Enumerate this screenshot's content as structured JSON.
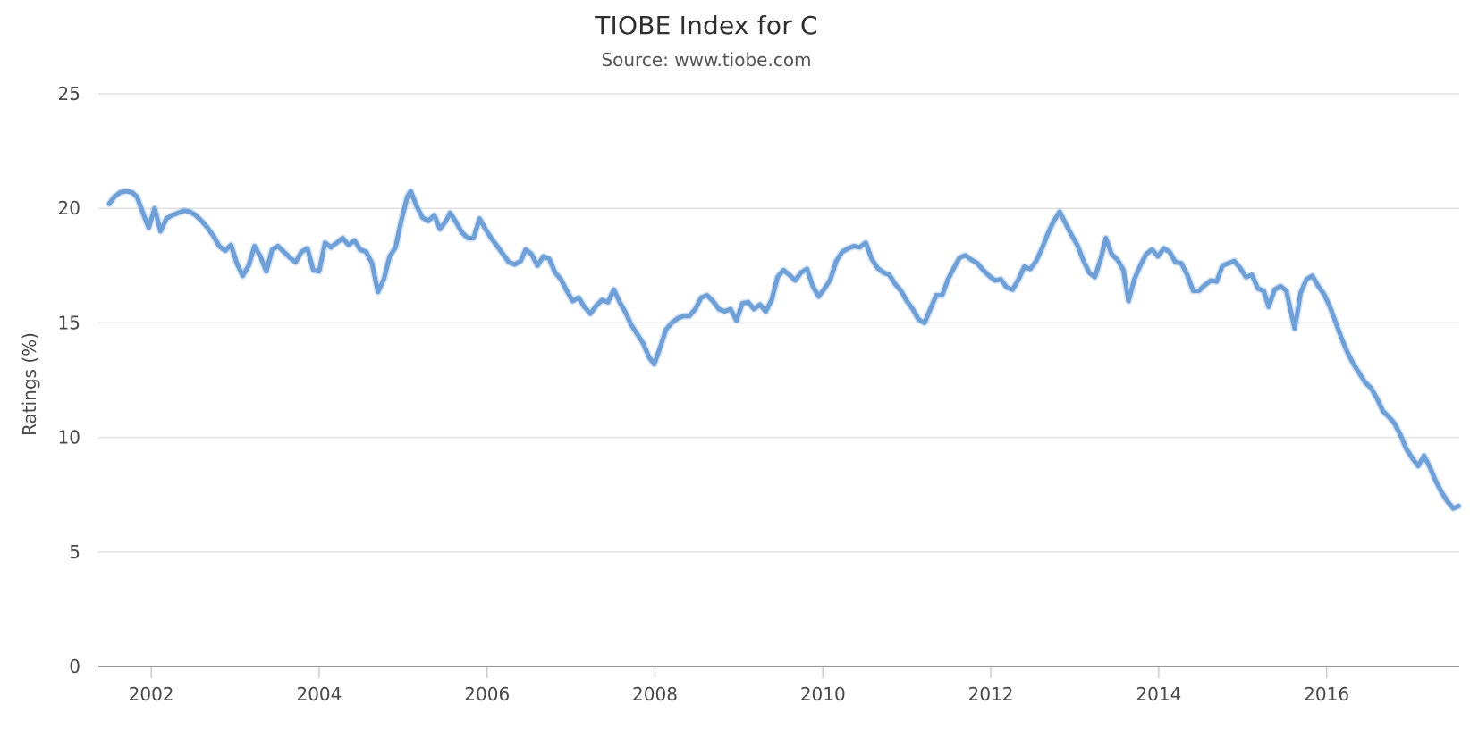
{
  "page": {
    "background": "#ffffff"
  },
  "chart_data": {
    "type": "line",
    "title": "TIOBE Index for C",
    "subtitle": "Source: www.tiobe.com",
    "xlabel": "",
    "ylabel": "Ratings (%)",
    "xlim": [
      2001.37,
      2017.58
    ],
    "ylim": [
      0,
      25
    ],
    "yticks": [
      0,
      5,
      10,
      15,
      20,
      25
    ],
    "xticks": [
      2002,
      2004,
      2006,
      2008,
      2010,
      2012,
      2014,
      2016
    ],
    "grid": "horizontal-only",
    "legend_position": "none",
    "colors": {
      "line": "#6e9fd7",
      "line_halo": "rgba(110,159,215,0.30)",
      "gridline": "#e2e2e2",
      "axis_line": "#9a9a9a",
      "tick_mark": "#cccccc",
      "tick_label": "#4a4a4a",
      "title": "#2f2f2f",
      "subtitle": "#555555"
    },
    "series": [
      {
        "name": "C",
        "points": [
          [
            2001.5,
            20.2
          ],
          [
            2001.56,
            20.5
          ],
          [
            2001.63,
            20.7
          ],
          [
            2001.7,
            20.75
          ],
          [
            2001.77,
            20.7
          ],
          [
            2001.83,
            20.5
          ],
          [
            2001.9,
            19.8
          ],
          [
            2001.97,
            19.15
          ],
          [
            2002.04,
            20.0
          ],
          [
            2002.11,
            19.0
          ],
          [
            2002.18,
            19.55
          ],
          [
            2002.25,
            19.7
          ],
          [
            2002.32,
            19.8
          ],
          [
            2002.39,
            19.9
          ],
          [
            2002.46,
            19.85
          ],
          [
            2002.53,
            19.7
          ],
          [
            2002.6,
            19.45
          ],
          [
            2002.67,
            19.15
          ],
          [
            2002.74,
            18.8
          ],
          [
            2002.81,
            18.35
          ],
          [
            2002.88,
            18.15
          ],
          [
            2002.95,
            18.4
          ],
          [
            2003.02,
            17.6
          ],
          [
            2003.09,
            17.05
          ],
          [
            2003.16,
            17.5
          ],
          [
            2003.23,
            18.35
          ],
          [
            2003.3,
            17.9
          ],
          [
            2003.37,
            17.25
          ],
          [
            2003.44,
            18.2
          ],
          [
            2003.51,
            18.35
          ],
          [
            2003.58,
            18.1
          ],
          [
            2003.65,
            17.85
          ],
          [
            2003.72,
            17.65
          ],
          [
            2003.79,
            18.1
          ],
          [
            2003.86,
            18.25
          ],
          [
            2003.93,
            17.3
          ],
          [
            2004.0,
            17.25
          ],
          [
            2004.07,
            18.5
          ],
          [
            2004.14,
            18.3
          ],
          [
            2004.21,
            18.5
          ],
          [
            2004.28,
            18.7
          ],
          [
            2004.35,
            18.4
          ],
          [
            2004.42,
            18.6
          ],
          [
            2004.49,
            18.2
          ],
          [
            2004.56,
            18.1
          ],
          [
            2004.63,
            17.6
          ],
          [
            2004.7,
            16.35
          ],
          [
            2004.77,
            16.9
          ],
          [
            2004.84,
            17.9
          ],
          [
            2004.91,
            18.3
          ],
          [
            2004.98,
            19.5
          ],
          [
            2005.05,
            20.5
          ],
          [
            2005.09,
            20.75
          ],
          [
            2005.16,
            20.1
          ],
          [
            2005.23,
            19.6
          ],
          [
            2005.3,
            19.45
          ],
          [
            2005.37,
            19.7
          ],
          [
            2005.44,
            19.1
          ],
          [
            2005.51,
            19.45
          ],
          [
            2005.56,
            19.8
          ],
          [
            2005.63,
            19.4
          ],
          [
            2005.7,
            18.95
          ],
          [
            2005.77,
            18.7
          ],
          [
            2005.84,
            18.7
          ],
          [
            2005.91,
            19.55
          ],
          [
            2005.98,
            19.1
          ],
          [
            2006.05,
            18.7
          ],
          [
            2006.12,
            18.35
          ],
          [
            2006.19,
            18.0
          ],
          [
            2006.26,
            17.65
          ],
          [
            2006.33,
            17.55
          ],
          [
            2006.4,
            17.7
          ],
          [
            2006.46,
            18.2
          ],
          [
            2006.53,
            18.0
          ],
          [
            2006.6,
            17.5
          ],
          [
            2006.67,
            17.9
          ],
          [
            2006.74,
            17.8
          ],
          [
            2006.81,
            17.2
          ],
          [
            2006.88,
            16.9
          ],
          [
            2006.95,
            16.4
          ],
          [
            2007.02,
            15.95
          ],
          [
            2007.09,
            16.1
          ],
          [
            2007.16,
            15.7
          ],
          [
            2007.23,
            15.4
          ],
          [
            2007.3,
            15.75
          ],
          [
            2007.37,
            16.0
          ],
          [
            2007.44,
            15.9
          ],
          [
            2007.51,
            16.45
          ],
          [
            2007.58,
            15.9
          ],
          [
            2007.65,
            15.45
          ],
          [
            2007.72,
            14.9
          ],
          [
            2007.79,
            14.5
          ],
          [
            2007.86,
            14.1
          ],
          [
            2007.93,
            13.5
          ],
          [
            2007.99,
            13.2
          ],
          [
            2008.06,
            13.9
          ],
          [
            2008.13,
            14.7
          ],
          [
            2008.2,
            15.0
          ],
          [
            2008.27,
            15.2
          ],
          [
            2008.34,
            15.3
          ],
          [
            2008.41,
            15.3
          ],
          [
            2008.48,
            15.6
          ],
          [
            2008.55,
            16.1
          ],
          [
            2008.62,
            16.2
          ],
          [
            2008.69,
            15.95
          ],
          [
            2008.76,
            15.6
          ],
          [
            2008.83,
            15.5
          ],
          [
            2008.9,
            15.6
          ],
          [
            2008.97,
            15.1
          ],
          [
            2009.04,
            15.85
          ],
          [
            2009.11,
            15.9
          ],
          [
            2009.18,
            15.6
          ],
          [
            2009.25,
            15.8
          ],
          [
            2009.32,
            15.5
          ],
          [
            2009.39,
            16.0
          ],
          [
            2009.46,
            17.0
          ],
          [
            2009.53,
            17.3
          ],
          [
            2009.6,
            17.1
          ],
          [
            2009.67,
            16.85
          ],
          [
            2009.74,
            17.2
          ],
          [
            2009.81,
            17.35
          ],
          [
            2009.88,
            16.6
          ],
          [
            2009.95,
            16.15
          ],
          [
            2010.02,
            16.5
          ],
          [
            2010.09,
            16.9
          ],
          [
            2010.16,
            17.7
          ],
          [
            2010.23,
            18.1
          ],
          [
            2010.3,
            18.25
          ],
          [
            2010.37,
            18.35
          ],
          [
            2010.44,
            18.3
          ],
          [
            2010.51,
            18.5
          ],
          [
            2010.58,
            17.8
          ],
          [
            2010.65,
            17.4
          ],
          [
            2010.72,
            17.2
          ],
          [
            2010.79,
            17.1
          ],
          [
            2010.86,
            16.7
          ],
          [
            2010.93,
            16.4
          ],
          [
            2011.0,
            15.95
          ],
          [
            2011.07,
            15.6
          ],
          [
            2011.14,
            15.15
          ],
          [
            2011.21,
            15.0
          ],
          [
            2011.28,
            15.6
          ],
          [
            2011.35,
            16.2
          ],
          [
            2011.42,
            16.2
          ],
          [
            2011.49,
            16.9
          ],
          [
            2011.56,
            17.4
          ],
          [
            2011.63,
            17.85
          ],
          [
            2011.7,
            17.95
          ],
          [
            2011.77,
            17.75
          ],
          [
            2011.84,
            17.6
          ],
          [
            2011.91,
            17.3
          ],
          [
            2011.98,
            17.05
          ],
          [
            2012.05,
            16.85
          ],
          [
            2012.12,
            16.9
          ],
          [
            2012.19,
            16.55
          ],
          [
            2012.26,
            16.45
          ],
          [
            2012.33,
            16.9
          ],
          [
            2012.4,
            17.45
          ],
          [
            2012.47,
            17.35
          ],
          [
            2012.54,
            17.7
          ],
          [
            2012.61,
            18.25
          ],
          [
            2012.68,
            18.9
          ],
          [
            2012.75,
            19.45
          ],
          [
            2012.82,
            19.85
          ],
          [
            2012.89,
            19.35
          ],
          [
            2012.96,
            18.85
          ],
          [
            2013.03,
            18.4
          ],
          [
            2013.1,
            17.75
          ],
          [
            2013.17,
            17.2
          ],
          [
            2013.24,
            17.0
          ],
          [
            2013.31,
            17.8
          ],
          [
            2013.37,
            18.7
          ],
          [
            2013.44,
            18.0
          ],
          [
            2013.51,
            17.75
          ],
          [
            2013.58,
            17.3
          ],
          [
            2013.64,
            15.95
          ],
          [
            2013.71,
            16.9
          ],
          [
            2013.78,
            17.5
          ],
          [
            2013.85,
            18.0
          ],
          [
            2013.92,
            18.2
          ],
          [
            2013.99,
            17.9
          ],
          [
            2014.06,
            18.25
          ],
          [
            2014.13,
            18.1
          ],
          [
            2014.2,
            17.65
          ],
          [
            2014.27,
            17.6
          ],
          [
            2014.34,
            17.1
          ],
          [
            2014.41,
            16.4
          ],
          [
            2014.48,
            16.4
          ],
          [
            2014.55,
            16.65
          ],
          [
            2014.62,
            16.85
          ],
          [
            2014.69,
            16.8
          ],
          [
            2014.76,
            17.5
          ],
          [
            2014.83,
            17.6
          ],
          [
            2014.9,
            17.7
          ],
          [
            2014.97,
            17.4
          ],
          [
            2015.04,
            17.0
          ],
          [
            2015.11,
            17.1
          ],
          [
            2015.18,
            16.5
          ],
          [
            2015.25,
            16.4
          ],
          [
            2015.31,
            15.7
          ],
          [
            2015.38,
            16.45
          ],
          [
            2015.45,
            16.6
          ],
          [
            2015.52,
            16.4
          ],
          [
            2015.58,
            15.4
          ],
          [
            2015.62,
            14.75
          ],
          [
            2015.69,
            16.3
          ],
          [
            2015.76,
            16.9
          ],
          [
            2015.83,
            17.05
          ],
          [
            2015.9,
            16.6
          ],
          [
            2015.97,
            16.25
          ],
          [
            2016.04,
            15.7
          ],
          [
            2016.11,
            15.0
          ],
          [
            2016.18,
            14.3
          ],
          [
            2016.25,
            13.7
          ],
          [
            2016.32,
            13.2
          ],
          [
            2016.39,
            12.8
          ],
          [
            2016.46,
            12.4
          ],
          [
            2016.53,
            12.15
          ],
          [
            2016.6,
            11.7
          ],
          [
            2016.67,
            11.15
          ],
          [
            2016.74,
            10.9
          ],
          [
            2016.81,
            10.6
          ],
          [
            2016.88,
            10.1
          ],
          [
            2016.95,
            9.5
          ],
          [
            2017.02,
            9.1
          ],
          [
            2017.09,
            8.75
          ],
          [
            2017.16,
            9.2
          ],
          [
            2017.23,
            8.7
          ],
          [
            2017.3,
            8.1
          ],
          [
            2017.37,
            7.6
          ],
          [
            2017.44,
            7.2
          ],
          [
            2017.51,
            6.9
          ],
          [
            2017.57,
            7.0
          ]
        ]
      }
    ]
  }
}
